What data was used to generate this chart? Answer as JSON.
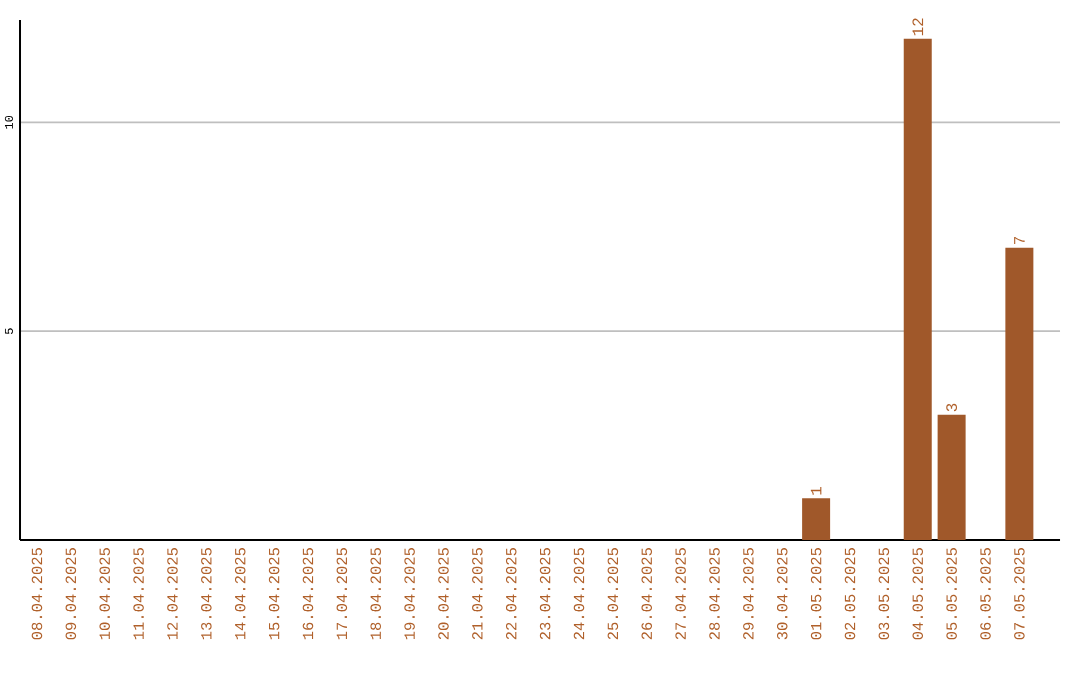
{
  "chart_data": {
    "type": "bar",
    "categories": [
      "08.04.2025",
      "09.04.2025",
      "10.04.2025",
      "11.04.2025",
      "12.04.2025",
      "13.04.2025",
      "14.04.2025",
      "15.04.2025",
      "16.04.2025",
      "17.04.2025",
      "18.04.2025",
      "19.04.2025",
      "20.04.2025",
      "21.04.2025",
      "22.04.2025",
      "23.04.2025",
      "24.04.2025",
      "25.04.2025",
      "26.04.2025",
      "27.04.2025",
      "28.04.2025",
      "29.04.2025",
      "30.04.2025",
      "01.05.2025",
      "02.05.2025",
      "03.05.2025",
      "04.05.2025",
      "05.05.2025",
      "06.05.2025",
      "07.05.2025"
    ],
    "values": [
      0,
      0,
      0,
      0,
      0,
      0,
      0,
      0,
      0,
      0,
      0,
      0,
      0,
      0,
      0,
      0,
      0,
      0,
      0,
      0,
      0,
      0,
      0,
      1,
      0,
      0,
      12,
      3,
      0,
      7
    ],
    "value_labels": [
      null,
      null,
      null,
      null,
      null,
      null,
      null,
      null,
      null,
      null,
      null,
      null,
      null,
      null,
      null,
      null,
      null,
      null,
      null,
      null,
      null,
      null,
      null,
      "1",
      null,
      null,
      "12",
      "3",
      null,
      "7"
    ],
    "color": "#a0582a",
    "ylim": [
      0,
      12.45
    ],
    "yticks": [
      5,
      10
    ],
    "grid": "y"
  }
}
